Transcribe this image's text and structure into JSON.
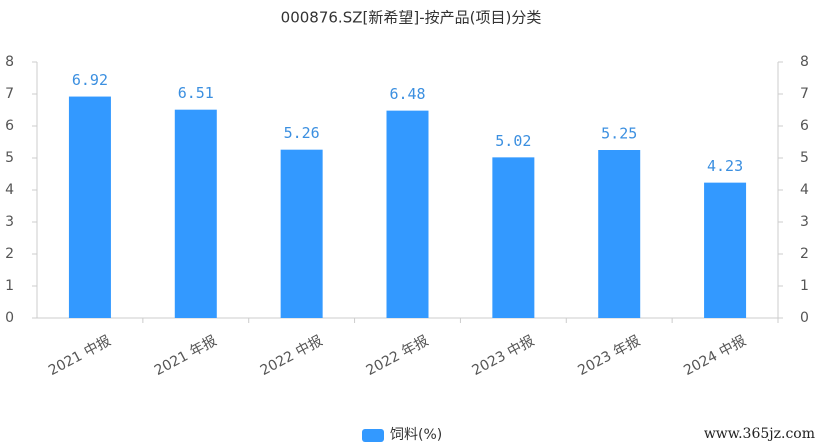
{
  "chart_data": {
    "type": "bar",
    "title": "000876.SZ[新希望]-按产品(项目)分类",
    "categories": [
      "2021 中报",
      "2021 年报",
      "2022 中报",
      "2022 年报",
      "2023 中报",
      "2023 年报",
      "2024 中报"
    ],
    "series": [
      {
        "name": "饲料(%)",
        "color": "#3399ff",
        "values": [
          6.92,
          6.51,
          5.26,
          6.48,
          5.02,
          5.25,
          4.23
        ]
      }
    ],
    "ylim": [
      0,
      8
    ],
    "yticks": [
      0,
      1,
      2,
      3,
      4,
      5,
      6,
      7,
      8
    ],
    "y2lim": [
      0,
      8
    ],
    "y2ticks": [
      0,
      1,
      2,
      3,
      4,
      5,
      6,
      7,
      8
    ],
    "grid": false,
    "legend": "bottom",
    "watermark": "www.365jz.com"
  }
}
